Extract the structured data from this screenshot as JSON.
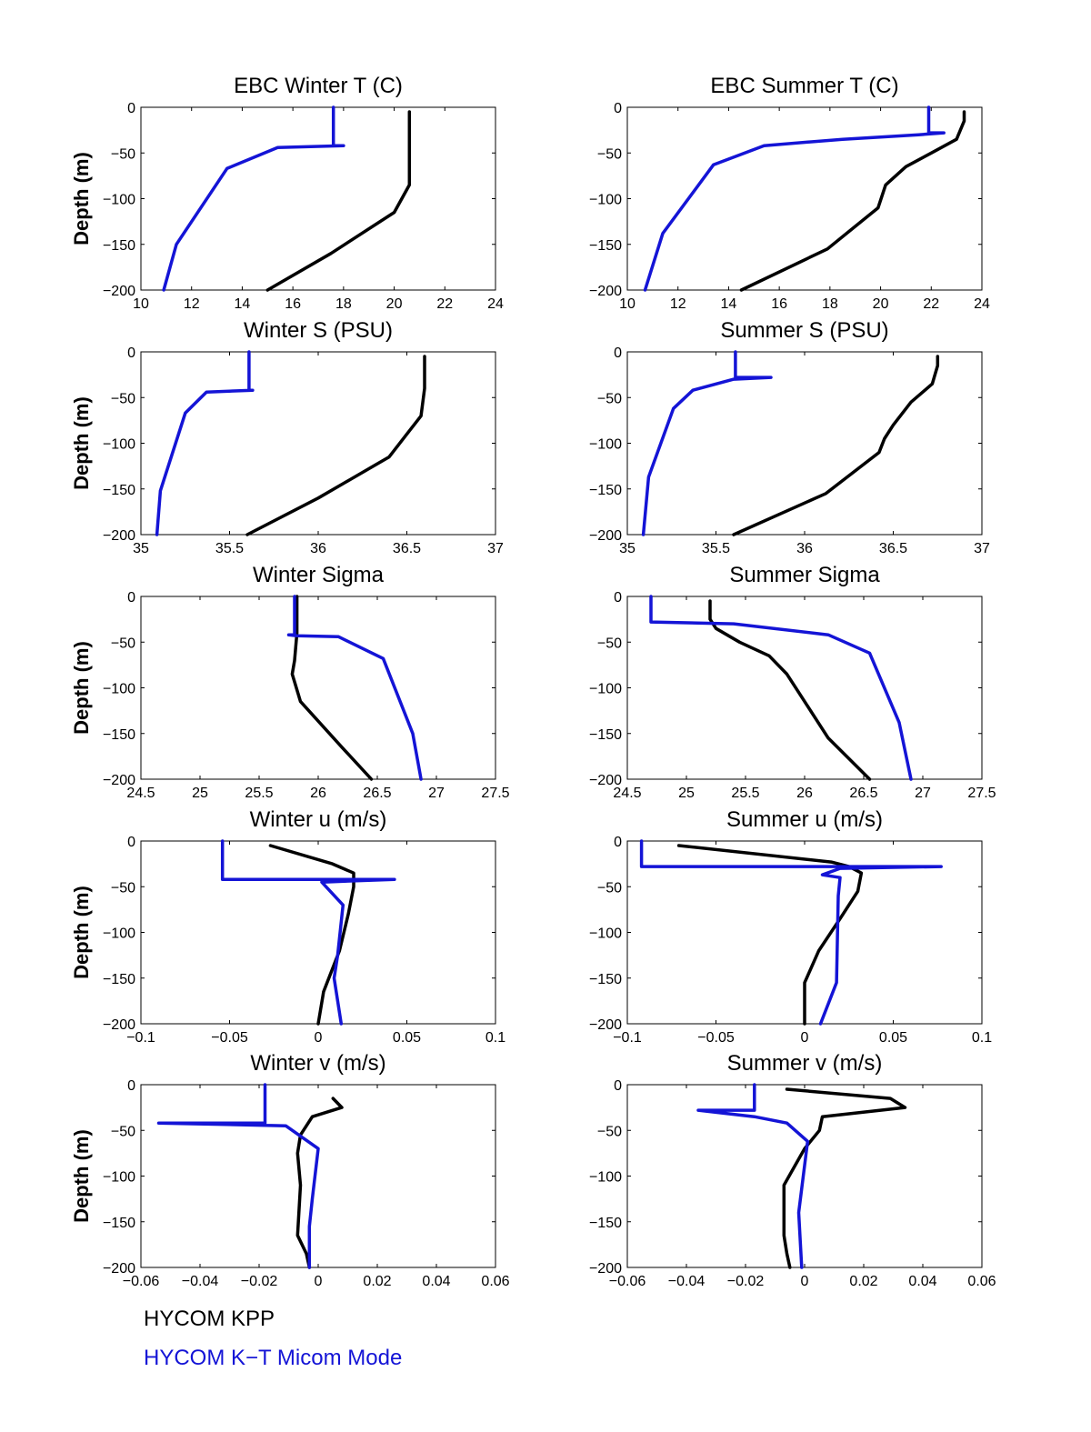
{
  "colors": {
    "kpp": "#000000",
    "micom": "#1414d6",
    "axes": "#000000"
  },
  "legend": {
    "kpp_label": "HYCOM KPP",
    "micom_label": "HYCOM K−T Micom Mode"
  },
  "chart_data": [
    {
      "type": "line",
      "title": "EBC Winter T (C)",
      "ylabel": "Depth (m)",
      "xlim": [
        10,
        24
      ],
      "ylim": [
        -200,
        0
      ],
      "xticks": [
        "10",
        "12",
        "14",
        "16",
        "18",
        "20",
        "22",
        "24"
      ],
      "yticks": [
        "0",
        "−50",
        "−100",
        "−150",
        "−200"
      ],
      "series": [
        {
          "name": "HYCOM KPP",
          "color": "kpp",
          "x": [
            20.6,
            20.6,
            20.6,
            20.0,
            17.5,
            15.0
          ],
          "y": [
            -5,
            -40,
            -85,
            -115,
            -160,
            -200
          ]
        },
        {
          "name": "HYCOM K−T Micom Mode",
          "color": "micom",
          "x": [
            17.6,
            17.6,
            18.0,
            15.4,
            13.4,
            11.4,
            10.9
          ],
          "y": [
            0,
            -42,
            -42,
            -44,
            -67,
            -150,
            -200
          ]
        }
      ]
    },
    {
      "type": "line",
      "title": "EBC Summer T (C)",
      "ylabel": "",
      "xlim": [
        10,
        24
      ],
      "ylim": [
        -200,
        0
      ],
      "xticks": [
        "10",
        "12",
        "14",
        "16",
        "18",
        "20",
        "22",
        "24"
      ],
      "yticks": [
        "0",
        "−50",
        "−100",
        "−150",
        "−200"
      ],
      "series": [
        {
          "name": "HYCOM KPP",
          "color": "kpp",
          "x": [
            23.3,
            23.3,
            23.0,
            22.0,
            21.0,
            20.2,
            19.9,
            17.9,
            14.5
          ],
          "y": [
            -5,
            -15,
            -35,
            -50,
            -65,
            -85,
            -110,
            -155,
            -200
          ]
        },
        {
          "name": "HYCOM K−T Micom Mode",
          "color": "micom",
          "x": [
            21.9,
            21.9,
            22.5,
            21.5,
            18.5,
            15.4,
            13.4,
            11.4,
            10.7
          ],
          "y": [
            0,
            -28,
            -28,
            -30,
            -35,
            -42,
            -63,
            -138,
            -200
          ]
        }
      ]
    },
    {
      "type": "line",
      "title": "Winter S (PSU)",
      "ylabel": "Depth (m)",
      "xlim": [
        35,
        37
      ],
      "ylim": [
        -200,
        0
      ],
      "xticks": [
        "35",
        "35.5",
        "36",
        "36.5",
        "37"
      ],
      "yticks": [
        "0",
        "−50",
        "−100",
        "−150",
        "−200"
      ],
      "series": [
        {
          "name": "HYCOM KPP",
          "color": "kpp",
          "x": [
            36.6,
            36.6,
            36.58,
            36.5,
            36.4,
            36.0,
            35.6
          ],
          "y": [
            -5,
            -40,
            -70,
            -90,
            -115,
            -160,
            -200
          ]
        },
        {
          "name": "HYCOM K−T Micom Mode",
          "color": "micom",
          "x": [
            35.61,
            35.61,
            35.63,
            35.37,
            35.25,
            35.11,
            35.09
          ],
          "y": [
            0,
            -42,
            -42,
            -44,
            -67,
            -152,
            -200
          ]
        }
      ]
    },
    {
      "type": "line",
      "title": "Summer S (PSU)",
      "ylabel": "",
      "xlim": [
        35,
        37
      ],
      "ylim": [
        -200,
        0
      ],
      "xticks": [
        "35",
        "35.5",
        "36",
        "36.5",
        "37"
      ],
      "yticks": [
        "0",
        "−50",
        "−100",
        "−150",
        "−200"
      ],
      "series": [
        {
          "name": "HYCOM KPP",
          "color": "kpp",
          "x": [
            36.75,
            36.75,
            36.72,
            36.6,
            36.5,
            36.45,
            36.42,
            36.12,
            35.6
          ],
          "y": [
            -5,
            -15,
            -35,
            -55,
            -80,
            -95,
            -110,
            -155,
            -200
          ]
        },
        {
          "name": "HYCOM K−T Micom Mode",
          "color": "micom",
          "x": [
            35.61,
            35.61,
            35.81,
            35.6,
            35.37,
            35.26,
            35.12,
            35.09
          ],
          "y": [
            0,
            -28,
            -28,
            -30,
            -42,
            -62,
            -137,
            -200
          ]
        }
      ]
    },
    {
      "type": "line",
      "title": "Winter Sigma",
      "ylabel": "Depth (m)",
      "xlim": [
        24.5,
        27.5
      ],
      "ylim": [
        -200,
        0
      ],
      "xticks": [
        "24.5",
        "25",
        "25.5",
        "26",
        "26.5",
        "27",
        "27.5"
      ],
      "yticks": [
        "0",
        "−50",
        "−100",
        "−150",
        "−200"
      ],
      "series": [
        {
          "name": "HYCOM KPP",
          "color": "kpp",
          "x": [
            25.82,
            25.82,
            25.8,
            25.78,
            25.85,
            26.2,
            26.45
          ],
          "y": [
            0,
            -40,
            -70,
            -85,
            -115,
            -165,
            -200
          ]
        },
        {
          "name": "HYCOM K−T Micom Mode",
          "color": "micom",
          "x": [
            25.8,
            25.8,
            25.75,
            25.82,
            26.17,
            26.55,
            26.8,
            26.87
          ],
          "y": [
            0,
            -42,
            -42,
            -43,
            -44,
            -68,
            -150,
            -200
          ]
        }
      ]
    },
    {
      "type": "line",
      "title": "Summer Sigma",
      "ylabel": "",
      "xlim": [
        24.5,
        27.5
      ],
      "ylim": [
        -200,
        0
      ],
      "xticks": [
        "24.5",
        "25",
        "25.5",
        "26",
        "26.5",
        "27",
        "27.5"
      ],
      "yticks": [
        "0",
        "−50",
        "−100",
        "−150",
        "−200"
      ],
      "series": [
        {
          "name": "HYCOM KPP",
          "color": "kpp",
          "x": [
            25.2,
            25.2,
            25.25,
            25.45,
            25.7,
            25.85,
            26.2,
            26.55
          ],
          "y": [
            -5,
            -25,
            -35,
            -50,
            -65,
            -85,
            -155,
            -200
          ]
        },
        {
          "name": "HYCOM K−T Micom Mode",
          "color": "micom",
          "x": [
            24.7,
            24.7,
            25.4,
            26.2,
            26.55,
            26.8,
            26.9
          ],
          "y": [
            0,
            -28,
            -30,
            -42,
            -62,
            -138,
            -200
          ]
        }
      ]
    },
    {
      "type": "line",
      "title": "Winter u (m/s)",
      "ylabel": "Depth (m)",
      "xlim": [
        -0.1,
        0.1
      ],
      "ylim": [
        -200,
        0
      ],
      "xticks": [
        "−0.1",
        "−0.05",
        "0",
        "0.05",
        "0.1"
      ],
      "yticks": [
        "0",
        "−50",
        "−100",
        "−150",
        "−200"
      ],
      "series": [
        {
          "name": "HYCOM KPP",
          "color": "kpp",
          "x": [
            -0.027,
            0.008,
            0.02,
            0.02,
            0.017,
            0.012,
            0.003,
            0.0
          ],
          "y": [
            -5,
            -25,
            -35,
            -50,
            -80,
            -120,
            -165,
            -200
          ]
        },
        {
          "name": "HYCOM K−T Micom Mode",
          "color": "micom",
          "x": [
            -0.054,
            -0.054,
            0.043,
            0.002,
            0.014,
            0.011,
            0.009,
            0.013
          ],
          "y": [
            0,
            -42,
            -42,
            -45,
            -70,
            -125,
            -150,
            -200
          ]
        }
      ]
    },
    {
      "type": "line",
      "title": "Summer u (m/s)",
      "ylabel": "",
      "xlim": [
        -0.1,
        0.1
      ],
      "ylim": [
        -200,
        0
      ],
      "xticks": [
        "−0.1",
        "−0.05",
        "0",
        "0.05",
        "0.1"
      ],
      "yticks": [
        "0",
        "−50",
        "−100",
        "−150",
        "−200"
      ],
      "series": [
        {
          "name": "HYCOM KPP",
          "color": "kpp",
          "x": [
            -0.071,
            0.015,
            0.025,
            0.032,
            0.03,
            0.02,
            0.008,
            0.0,
            0.0
          ],
          "y": [
            -5,
            -23,
            -28,
            -35,
            -55,
            -85,
            -120,
            -155,
            -200
          ]
        },
        {
          "name": "HYCOM K−T Micom Mode",
          "color": "micom",
          "x": [
            -0.092,
            -0.092,
            0.077,
            0.02,
            0.01,
            0.02,
            0.019,
            0.018,
            0.009
          ],
          "y": [
            0,
            -28,
            -28,
            -30,
            -37,
            -40,
            -60,
            -155,
            -200
          ]
        }
      ]
    },
    {
      "type": "line",
      "title": "Winter v (m/s)",
      "ylabel": "Depth (m)",
      "xlim": [
        -0.06,
        0.06
      ],
      "ylim": [
        -200,
        0
      ],
      "xticks": [
        "−0.06",
        "−0.04",
        "−0.02",
        "0",
        "0.02",
        "0.04",
        "0.06"
      ],
      "yticks": [
        "0",
        "−50",
        "−100",
        "−150",
        "−200"
      ],
      "series": [
        {
          "name": "HYCOM KPP",
          "color": "kpp",
          "x": [
            0.005,
            0.008,
            -0.002,
            -0.006,
            -0.007,
            -0.006,
            -0.007,
            -0.004,
            -0.003
          ],
          "y": [
            -15,
            -25,
            -35,
            -55,
            -75,
            -110,
            -165,
            -185,
            -200
          ]
        },
        {
          "name": "HYCOM K−T Micom Mode",
          "color": "micom",
          "x": [
            -0.018,
            -0.018,
            -0.054,
            -0.011,
            0.0,
            -0.002,
            -0.003,
            -0.003
          ],
          "y": [
            0,
            -42,
            -42,
            -45,
            -70,
            -125,
            -155,
            -200
          ]
        }
      ]
    },
    {
      "type": "line",
      "title": "Summer v (m/s)",
      "ylabel": "",
      "xlim": [
        -0.06,
        0.06
      ],
      "ylim": [
        -200,
        0
      ],
      "xticks": [
        "−0.06",
        "−0.04",
        "−0.02",
        "0",
        "0.02",
        "0.04",
        "0.06"
      ],
      "yticks": [
        "0",
        "−50",
        "−100",
        "−150",
        "−200"
      ],
      "series": [
        {
          "name": "HYCOM KPP",
          "color": "kpp",
          "x": [
            -0.006,
            0.029,
            0.034,
            0.006,
            0.005,
            0.0,
            -0.007,
            -0.007,
            -0.006,
            -0.005
          ],
          "y": [
            -5,
            -15,
            -25,
            -35,
            -50,
            -70,
            -110,
            -165,
            -185,
            -200
          ]
        },
        {
          "name": "HYCOM K−T Micom Mode",
          "color": "micom",
          "x": [
            -0.017,
            -0.017,
            -0.036,
            -0.017,
            -0.006,
            0.001,
            -0.002,
            -0.001
          ],
          "y": [
            0,
            -28,
            -28,
            -35,
            -42,
            -62,
            -140,
            -200
          ]
        }
      ]
    }
  ]
}
